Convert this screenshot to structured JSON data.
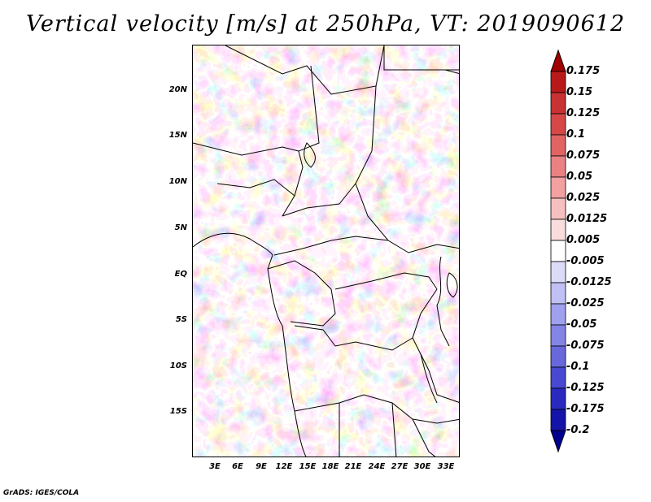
{
  "title": "Vertical velocity [m/s] at 250hPa, VT: 2019090612",
  "credit": "GrADS: IGES/COLA",
  "map": {
    "lat_ticks": [
      "20N",
      "15N",
      "10N",
      "5N",
      "EQ",
      "5S",
      "10S",
      "15S"
    ],
    "lon_ticks": [
      "3E",
      "6E",
      "9E",
      "12E",
      "15E",
      "18E",
      "21E",
      "24E",
      "27E",
      "30E",
      "33E"
    ]
  },
  "colorbar": {
    "labels": [
      "0.175",
      "0.15",
      "0.125",
      "0.1",
      "0.075",
      "0.05",
      "0.025",
      "0.0125",
      "0.005",
      "-0.005",
      "-0.0125",
      "-0.025",
      "-0.05",
      "-0.075",
      "-0.1",
      "-0.125",
      "-0.175",
      "-0.2"
    ],
    "colors": [
      "#a00000",
      "#b81a1a",
      "#c83232",
      "#d64848",
      "#e06464",
      "#ea8282",
      "#f2a0a0",
      "#f7c0c0",
      "#fbdcdc",
      "#ffffff",
      "#dcdcf8",
      "#c0c0f4",
      "#a0a0ee",
      "#8484e6",
      "#6868dc",
      "#4848d0",
      "#2a2ac0",
      "#1414a8",
      "#000090"
    ]
  }
}
